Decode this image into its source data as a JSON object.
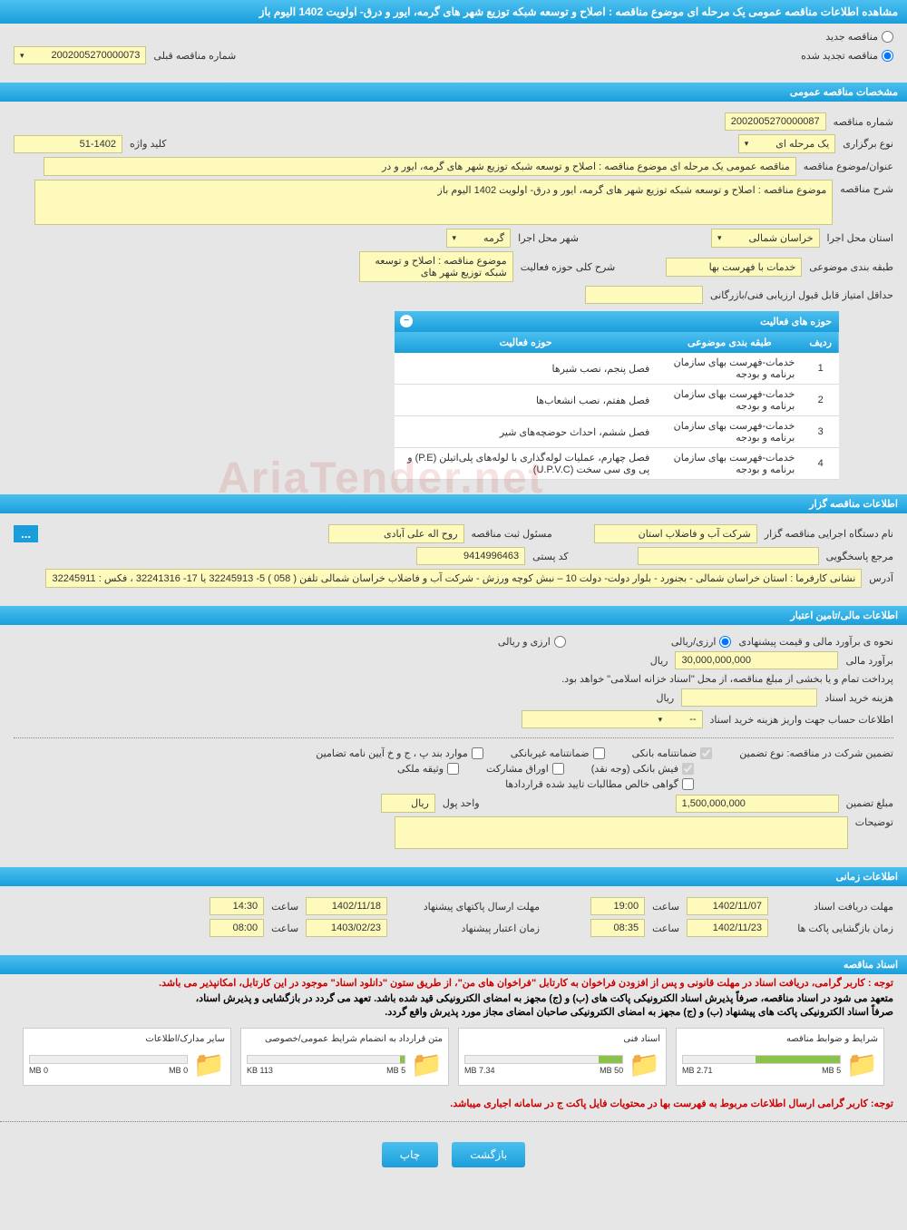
{
  "header": {
    "title": "مشاهده اطلاعات مناقصه عمومی یک مرحله ای موضوع مناقصه : اصلاح و توسعه شبکه توزیع شهر های گرمه، ایور و درق- اولویت 1402 الیوم باز"
  },
  "tender_type": {
    "new_label": "مناقصه جدید",
    "renewed_label": "مناقصه تجدید شده",
    "selected": "renewed",
    "prev_number_label": "شماره مناقصه قبلی",
    "prev_number": "2002005270000073"
  },
  "section_general": {
    "title": "مشخصات مناقصه عمومی",
    "tender_number_label": "شماره مناقصه",
    "tender_number": "2002005270000087",
    "holding_type_label": "نوع برگزاری",
    "holding_type": "یک مرحله ای",
    "keyword_label": "کلید واژه",
    "keyword": "51-1402",
    "subject_title_label": "عنوان/موضوع مناقصه",
    "subject_title": "مناقصه عمومی یک مرحله ای موضوع مناقصه : اصلاح و توسعه شبکه توزیع شهر های گرمه، ایور و در",
    "description_label": "شرح مناقصه",
    "description": "موضوع مناقصه : اصلاح و توسعه شبکه توزیع شهر های گرمه، ایور و درق- اولویت 1402  الیوم باز",
    "province_label": "استان محل اجرا",
    "province": "خراسان شمالی",
    "city_label": "شهر محل اجرا",
    "city": "گرمه",
    "category_subject_label": "طبقه بندی موضوعی",
    "category_subject": "خدمات با فهرست بها",
    "activity_scope_label": "شرح کلی حوزه فعالیت",
    "activity_scope": "موضوع مناقصه : اصلاح و توسعه شبکه توزیع شهر های",
    "min_score_label": "حداقل امتیاز قابل قبول ارزیابی فنی/بازرگانی",
    "min_score": "",
    "activity_table": {
      "title": "حوزه های فعالیت",
      "cols": [
        "ردیف",
        "طبقه بندی موضوعی",
        "حوزه فعالیت"
      ],
      "rows": [
        [
          "1",
          "خدمات-فهرست بهای سازمان برنامه و بودجه",
          "فصل پنجم، نصب شیرها"
        ],
        [
          "2",
          "خدمات-فهرست بهای سازمان برنامه و بودجه",
          "فصل هفتم، نصب انشعاب‌ها"
        ],
        [
          "3",
          "خدمات-فهرست بهای سازمان برنامه و بودجه",
          "فصل ششم، احداث حوضچه‌های شیر"
        ],
        [
          "4",
          "خدمات-فهرست بهای سازمان برنامه و بودجه",
          "فصل چهارم، عملیات لوله‌گذاری با لوله‌های پلی‌اتیلن (P.E) و پی وی سی سخت (U.P.V.C)"
        ]
      ]
    }
  },
  "section_org": {
    "title": "اطلاعات مناقصه گزار",
    "executive_label": "نام دستگاه اجرایی مناقصه گزار",
    "executive": "شرکت آب و فاضلاب استان",
    "responsible_label": "مسئول ثبت مناقصه",
    "responsible": "روح اله  علی آبادی",
    "reference_label": "مرجع پاسخگویی",
    "reference": "",
    "postal_label": "کد پستی",
    "postal": "9414996463",
    "address_label": "آدرس",
    "address": "نشانی کارفرما : استان خراسان شمالی - بجنورد - بلوار دولت- دولت 10 – نبش کوچه ورزش - شرکت آب و فاضلاب خراسان شمالی تلفن ( 058 ) 5- 32245913 یا 17- 32241316 ، فکس : 32245911"
  },
  "section_finance": {
    "title": "اطلاعات مالی/تامین اعتبار",
    "estimate_method_label": "نحوه ی برآورد مالی و قیمت پیشنهادی",
    "rial_only": "ارزی/ریالی",
    "rial_and_currency": "ارزی و ریالی",
    "estimate_label": "برآورد مالی",
    "estimate": "30,000,000,000",
    "payment_note": "پرداخت تمام و یا بخشی از مبلغ مناقصه، از محل \"اسناد خزانه اسلامی\" خواهد بود.",
    "doc_cost_label": "هزینه خرید اسناد",
    "doc_cost": "",
    "account_label": "اطلاعات حساب جهت واریز هزینه خرید اسناد",
    "account": "--",
    "guarantee_label": "تضمین شرکت در مناقصه:   نوع تضمین",
    "guarantee_types": {
      "bank": "ضمانتنامه بانکی",
      "nonbank": "ضمانتنامه غیربانکی",
      "regulation": "موارد بند پ ، ج و خ آیین نامه تضامین",
      "cash": "فیش بانکی (وجه نقد)",
      "bonds": "اوراق مشارکت",
      "mortgage": "وثیقه ملکی",
      "cert": "گواهی خالص مطالبات تایید شده قراردادها"
    },
    "guarantee_amount_label": "مبلغ تضمین",
    "guarantee_amount": "1,500,000,000",
    "currency_unit_label": "واحد پول",
    "currency_unit": "ریال",
    "comments_label": "توضیحات",
    "comments": "",
    "rial_unit": "ریال"
  },
  "section_time": {
    "title": "اطلاعات زمانی",
    "deadline_label": "مهلت دریافت اسناد",
    "deadline_date": "1402/11/07",
    "deadline_time": "19:00",
    "envelope_deadline_label": "مهلت ارسال پاکتهای پیشنهاد",
    "envelope_date": "1402/11/18",
    "envelope_time": "14:30",
    "opening_label": "زمان بازگشایی پاکت ها",
    "opening_date": "1402/11/23",
    "opening_time": "08:35",
    "validity_label": "زمان اعتبار پیشنهاد",
    "validity_date": "1403/02/23",
    "validity_time": "08:00",
    "time_label": "ساعت"
  },
  "section_docs": {
    "title": "اسناد مناقصه",
    "note1": "توجه : کاربر گرامی، دریافت اسناد در مهلت قانونی و پس از افزودن فراخوان به کارتابل \"فراخوان های من\"، از طریق ستون \"دانلود اسناد\" موجود در این کارتابل، امکانپذیر می باشد.",
    "note2": "متعهد می شود در اسناد مناقصه، صرفاً پذیرش اسناد الکترونیکی پاکت های (ب) و (ج) مجهز به امضای الکترونیکی قید شده باشد. تعهد می گردد در بازگشایی و پذیرش اسناد،",
    "note3": "صرفاً اسناد الکترونیکی پاکت های پیشنهاد (ب) و (ج) مجهز به امضای الکترونیکی صاحبان امضای مجاز مورد پذیرش واقع گردد.",
    "files": [
      {
        "name": "شرایط و ضوابط مناقصه",
        "used": "2.71 MB",
        "total": "5 MB",
        "pct": 54
      },
      {
        "name": "اسناد فنی",
        "used": "7.34 MB",
        "total": "50 MB",
        "pct": 15
      },
      {
        "name": "متن قرارداد به انضمام شرایط عمومی/خصوصی",
        "used": "113 KB",
        "total": "5 MB",
        "pct": 3
      },
      {
        "name": "سایر مدارک/اطلاعات",
        "used": "0 MB",
        "total": "0 MB",
        "pct": 0
      }
    ],
    "final_note": "توجه: کاربر گرامی ارسال اطلاعات مربوط به فهرست بها در محتویات فایل پاکت ج در سامانه اجباری میباشد."
  },
  "buttons": {
    "back": "بازگشت",
    "print": "چاپ"
  },
  "watermark": "AriaTender.net"
}
